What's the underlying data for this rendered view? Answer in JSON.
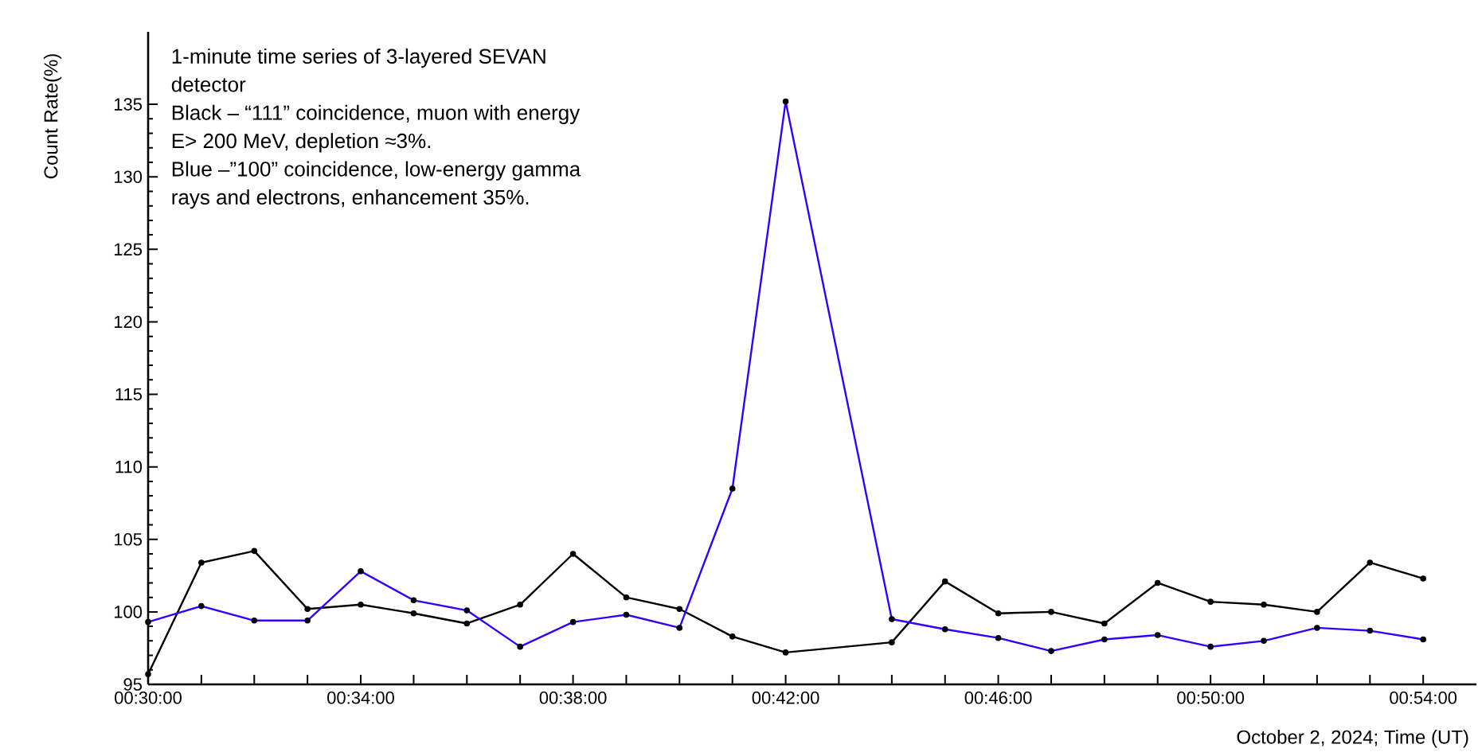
{
  "chart_data": {
    "type": "line",
    "xlabel": "October 2, 2024; Time (UT)",
    "ylabel": "Count Rate(%)",
    "annotations": [
      "1-minute time series of 3-layered SEVAN",
      "detector",
      "Black – “111” coincidence, muon with energy",
      "E> 200 MeV, depletion ≈3%.",
      "Blue –”100” coincidence, low-energy gamma",
      "rays and electrons, enhancement 35%."
    ],
    "x": [
      0.5,
      0.5167,
      0.5333,
      0.55,
      0.5667,
      0.5833,
      0.6,
      0.6167,
      0.6333,
      0.65,
      0.6667,
      0.6833,
      0.7,
      0.7333,
      0.75,
      0.7667,
      0.7833,
      0.8,
      0.8167,
      0.8333,
      0.85,
      0.8667,
      0.8833,
      0.9
    ],
    "series": [
      {
        "color": "#000000",
        "values": [
          95.7,
          103.4,
          104.2,
          100.2,
          100.5,
          99.9,
          99.2,
          100.5,
          104.0,
          101.0,
          100.2,
          98.3,
          97.2,
          97.9,
          102.1,
          99.9,
          100.0,
          99.2,
          102.0,
          100.7,
          100.5,
          100.0,
          103.4,
          102.3
        ]
      },
      {
        "color": "#3300ff",
        "values": [
          99.3,
          100.4,
          99.4,
          99.4,
          102.8,
          100.8,
          100.1,
          97.6,
          99.3,
          99.8,
          98.9,
          108.5,
          135.2,
          99.5,
          98.8,
          98.2,
          97.3,
          98.1,
          98.4,
          97.6,
          98.0,
          98.9,
          98.7,
          98.1
        ]
      }
    ],
    "xlim": [
      0.5,
      0.9167
    ],
    "xticks": [
      {
        "value": 0.5,
        "label": "00:30:00"
      },
      {
        "value": 0.5167,
        "label": null
      },
      {
        "value": 0.5333,
        "label": null
      },
      {
        "value": 0.55,
        "label": null
      },
      {
        "value": 0.5667,
        "label": "00:34:00"
      },
      {
        "value": 0.5833,
        "label": null
      },
      {
        "value": 0.6,
        "label": null
      },
      {
        "value": 0.6167,
        "label": null
      },
      {
        "value": 0.6333,
        "label": "00:38:00"
      },
      {
        "value": 0.65,
        "label": null
      },
      {
        "value": 0.6667,
        "label": null
      },
      {
        "value": 0.6833,
        "label": null
      },
      {
        "value": 0.7,
        "label": "00:42:00"
      },
      {
        "value": 0.7167,
        "label": null
      },
      {
        "value": 0.7333,
        "label": null
      },
      {
        "value": 0.75,
        "label": null
      },
      {
        "value": 0.7667,
        "label": "00:46:00"
      },
      {
        "value": 0.7833,
        "label": null
      },
      {
        "value": 0.8,
        "label": null
      },
      {
        "value": 0.8167,
        "label": null
      },
      {
        "value": 0.8333,
        "label": "00:50:00"
      },
      {
        "value": 0.85,
        "label": null
      },
      {
        "value": 0.8667,
        "label": null
      },
      {
        "value": 0.8833,
        "label": null
      },
      {
        "value": 0.9,
        "label": "00:54:00"
      }
    ],
    "ylim": [
      95,
      140
    ],
    "yticks": [
      95,
      100,
      105,
      110,
      115,
      120,
      125,
      130,
      135
    ],
    "grid": false,
    "marker": "circle",
    "line_style": "solid"
  }
}
